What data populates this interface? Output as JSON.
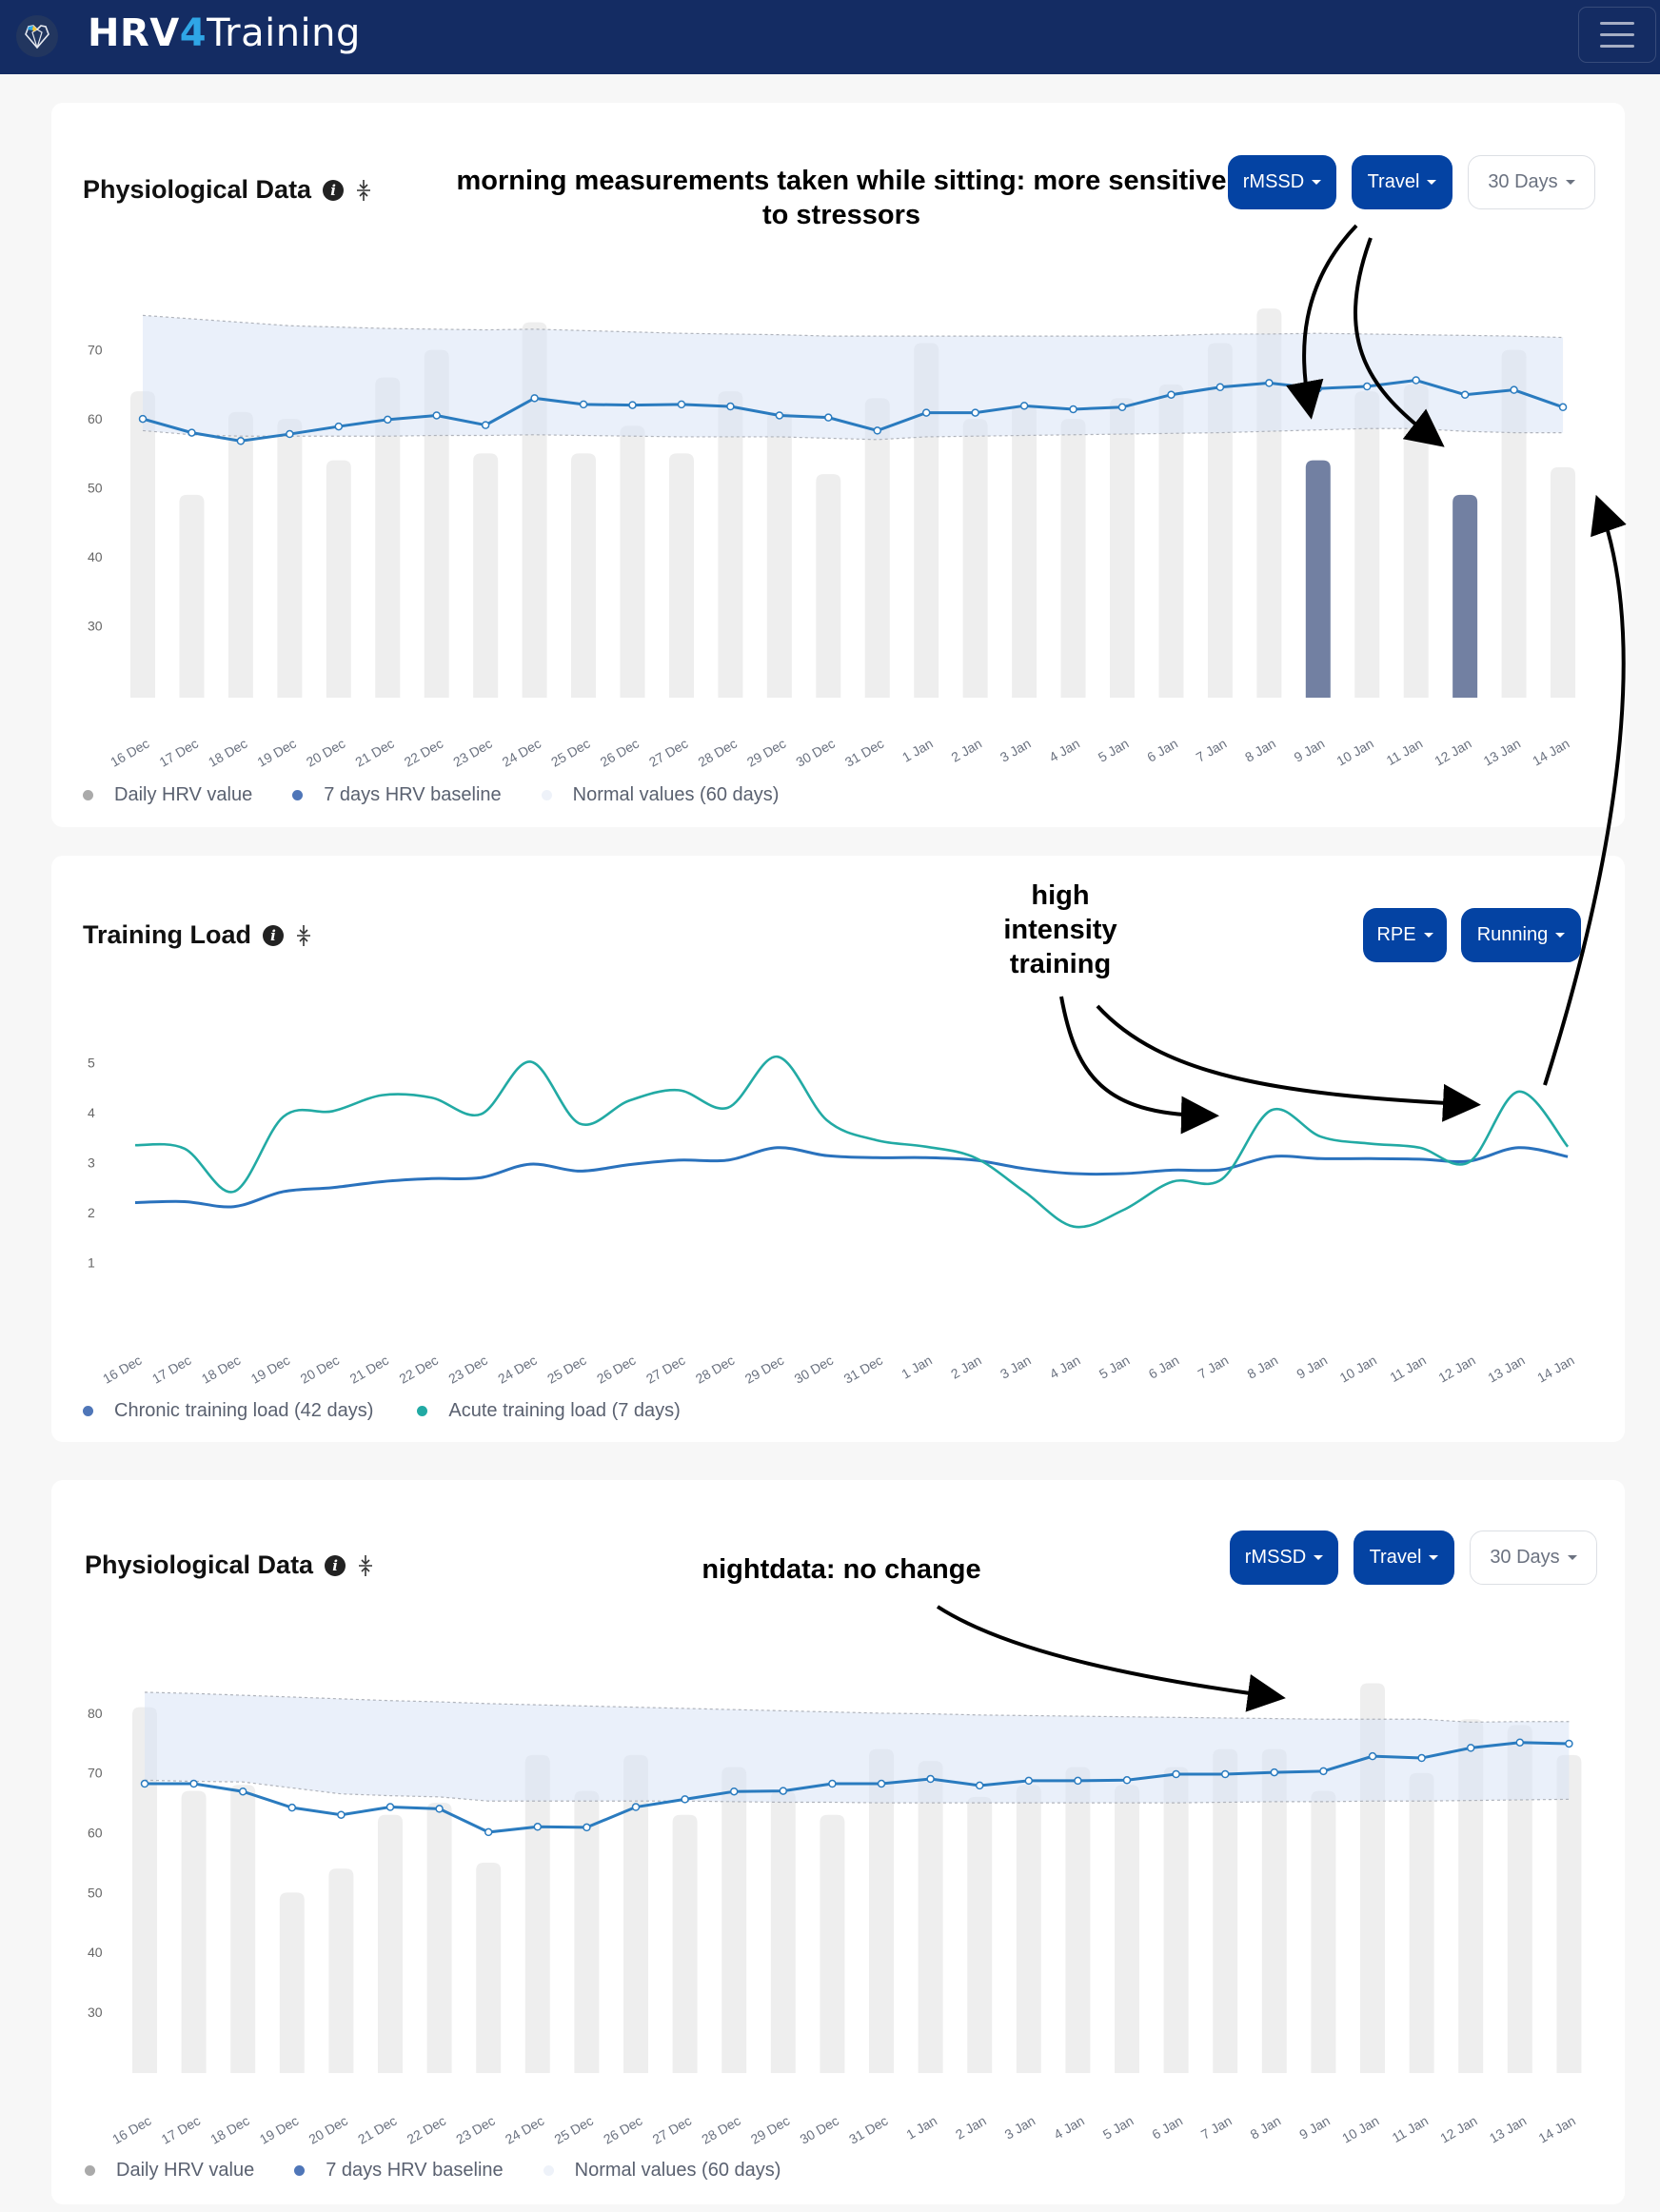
{
  "header": {
    "brand_part1": "HRV",
    "brand_part2": "4",
    "brand_part3": "Training",
    "logo_icon": "heart-logo-icon",
    "menu_icon": "hamburger-menu-icon"
  },
  "colors": {
    "header_bg": "#142c63",
    "primary_button": "#0443a3",
    "baseline_line": "#2a7bbf",
    "daily_bar": "#eeeeee",
    "highlight_bar": "#7280a2",
    "normal_band": "#e9eff9",
    "acute_line": "#22aaa4",
    "chronic_line": "#2a72bd"
  },
  "cards": [
    {
      "title": "Physiological Data",
      "annotation": "morning measurements taken while sitting: more sensitive to stressors",
      "buttons": {
        "metric": "rMSSD",
        "tag": "Travel",
        "range": "30 Days"
      },
      "legend": [
        "Daily HRV value",
        "7 days HRV baseline",
        "Normal values (60 days)"
      ]
    },
    {
      "title": "Training Load",
      "annotation": "high intensity training",
      "buttons": {
        "metric": "RPE",
        "sport": "Running"
      },
      "legend": [
        "Chronic training load (42 days)",
        "Acute training load (7 days)"
      ]
    },
    {
      "title": "Physiological Data",
      "annotation": "nightdata: no change",
      "buttons": {
        "metric": "rMSSD",
        "tag": "Travel",
        "range": "30 Days"
      },
      "legend": [
        "Daily HRV value",
        "7 days HRV baseline",
        "Normal values (60 days)"
      ]
    }
  ],
  "chart_data": [
    {
      "type": "bar",
      "title": "Physiological Data (morning, sitting)",
      "categories": [
        "16 Dec",
        "17 Dec",
        "18 Dec",
        "19 Dec",
        "20 Dec",
        "21 Dec",
        "22 Dec",
        "23 Dec",
        "24 Dec",
        "25 Dec",
        "26 Dec",
        "27 Dec",
        "28 Dec",
        "29 Dec",
        "30 Dec",
        "31 Dec",
        "1 Jan",
        "2 Jan",
        "3 Jan",
        "4 Jan",
        "5 Jan",
        "6 Jan",
        "7 Jan",
        "8 Jan",
        "9 Jan",
        "10 Jan",
        "11 Jan",
        "12 Jan",
        "13 Jan",
        "14 Jan"
      ],
      "yticks": [
        30,
        40,
        50,
        60,
        70
      ],
      "ylim": [
        19.6,
        76
      ],
      "series": [
        {
          "name": "Daily HRV value",
          "type": "bar",
          "values": [
            64,
            49,
            61,
            60,
            54,
            66,
            70,
            55,
            74,
            55,
            59,
            55,
            64,
            61,
            52,
            63,
            71,
            60,
            62,
            60,
            63,
            65,
            71,
            76,
            54,
            64,
            65,
            49,
            70,
            53
          ]
        },
        {
          "name": "7 days HRV baseline",
          "type": "line",
          "values": [
            60,
            58,
            56.8,
            57.8,
            58.9,
            59.9,
            60.5,
            59.1,
            63,
            62.1,
            62,
            62.1,
            61.8,
            60.5,
            60.2,
            58.3,
            60.9,
            60.9,
            61.9,
            61.4,
            61.7,
            63.5,
            64.6,
            65.2,
            64.4,
            64.7,
            65.6,
            63.5,
            64.2,
            61.7
          ]
        },
        {
          "name": "Normal values (60 days)",
          "type": "band",
          "upper": [
            75,
            74.5,
            74,
            73.5,
            73.3,
            73.1,
            73,
            72.9,
            73,
            72.8,
            72.6,
            72.4,
            72.3,
            72.2,
            72,
            72,
            72,
            72,
            72,
            72,
            72,
            72.1,
            72.3,
            72.3,
            72.4,
            72.3,
            72.2,
            72.1,
            72,
            71.8
          ],
          "lower": [
            58.3,
            57.7,
            57.5,
            57.5,
            57.5,
            57.5,
            57.6,
            57.6,
            57.7,
            57.6,
            57.5,
            57.4,
            57.4,
            57.4,
            57.2,
            57,
            57.4,
            57.5,
            57.6,
            57.7,
            57.8,
            57.9,
            58,
            58.2,
            58.4,
            58.6,
            58.6,
            58.2,
            58.0,
            58.0
          ]
        }
      ],
      "highlighted": [
        "9 Jan",
        "12 Jan"
      ],
      "legend_position": "bottom-left"
    },
    {
      "type": "line",
      "title": "Training Load",
      "categories": [
        "16 Dec",
        "17 Dec",
        "18 Dec",
        "19 Dec",
        "20 Dec",
        "21 Dec",
        "22 Dec",
        "23 Dec",
        "24 Dec",
        "25 Dec",
        "26 Dec",
        "27 Dec",
        "28 Dec",
        "29 Dec",
        "30 Dec",
        "31 Dec",
        "1 Jan",
        "2 Jan",
        "3 Jan",
        "4 Jan",
        "5 Jan",
        "6 Jan",
        "7 Jan",
        "8 Jan",
        "9 Jan",
        "10 Jan",
        "11 Jan",
        "12 Jan",
        "13 Jan",
        "14 Jan"
      ],
      "yticks": [
        1,
        2,
        3,
        4,
        5
      ],
      "ylim": [
        0,
        5.5
      ],
      "series": [
        {
          "name": "Chronic training load (42 days)",
          "values": [
            2.2,
            2.22,
            2.12,
            2.42,
            2.5,
            2.62,
            2.68,
            2.7,
            2.97,
            2.83,
            2.96,
            3.05,
            3.05,
            3.3,
            3.14,
            3.1,
            3.1,
            3.05,
            2.88,
            2.78,
            2.78,
            2.85,
            2.86,
            3.12,
            3.08,
            3.08,
            3.07,
            3.03,
            3.3,
            3.12
          ]
        },
        {
          "name": "Acute training load (7 days)",
          "values": [
            3.35,
            3.28,
            2.42,
            3.92,
            4.03,
            4.35,
            4.3,
            3.97,
            5.02,
            3.78,
            4.24,
            4.45,
            4.1,
            5.12,
            3.85,
            3.45,
            3.32,
            3.1,
            2.42,
            1.72,
            2.05,
            2.62,
            2.67,
            4.05,
            3.52,
            3.38,
            3.3,
            3.01,
            4.42,
            3.32
          ]
        }
      ],
      "legend_position": "bottom-left"
    },
    {
      "type": "bar",
      "title": "Physiological Data (night)",
      "categories": [
        "16 Dec",
        "17 Dec",
        "18 Dec",
        "19 Dec",
        "20 Dec",
        "21 Dec",
        "22 Dec",
        "23 Dec",
        "24 Dec",
        "25 Dec",
        "26 Dec",
        "27 Dec",
        "28 Dec",
        "29 Dec",
        "30 Dec",
        "31 Dec",
        "1 Jan",
        "2 Jan",
        "3 Jan",
        "4 Jan",
        "5 Jan",
        "6 Jan",
        "7 Jan",
        "8 Jan",
        "9 Jan",
        "10 Jan",
        "11 Jan",
        "12 Jan",
        "13 Jan",
        "14 Jan"
      ],
      "yticks": [
        30,
        40,
        50,
        60,
        70,
        80
      ],
      "ylim": [
        19.8,
        84
      ],
      "series": [
        {
          "name": "Daily HRV value",
          "type": "bar",
          "values": [
            81,
            67,
            68,
            50,
            54,
            63,
            65,
            55,
            73,
            67,
            73,
            63,
            71,
            67,
            63,
            74,
            72,
            66,
            68,
            71,
            68,
            71,
            74,
            74,
            67,
            85,
            70,
            79,
            78,
            73
          ]
        },
        {
          "name": "7 days HRV baseline",
          "type": "line",
          "values": [
            68.2,
            68.2,
            66.9,
            64.2,
            63.0,
            64.3,
            64.0,
            60.1,
            61,
            60.9,
            64.3,
            65.6,
            66.9,
            67,
            68.2,
            68.2,
            69,
            67.9,
            68.7,
            68.7,
            68.8,
            69.8,
            69.8,
            70.1,
            70.3,
            72.8,
            72.5,
            74.2,
            75.1,
            74.9
          ]
        },
        {
          "name": "Normal values (60 days)",
          "type": "band",
          "upper": [
            83.5,
            83.3,
            83,
            82.7,
            82.4,
            82.1,
            81.9,
            81.6,
            81.4,
            81.2,
            81,
            80.8,
            80.6,
            80.4,
            80.2,
            80,
            79.9,
            79.7,
            79.6,
            79.5,
            79.4,
            79.3,
            79.2,
            79.1,
            79,
            79,
            79,
            78.5,
            78.6,
            78.6
          ],
          "lower": [
            68.8,
            68.6,
            68.5,
            67.5,
            66.5,
            66.2,
            66,
            65.3,
            65.3,
            65.3,
            65.3,
            65.3,
            65.2,
            65.1,
            65.1,
            65,
            65,
            65,
            65,
            65,
            65,
            65,
            65.1,
            65.2,
            65.2,
            65.3,
            65.3,
            65.4,
            65.5,
            65.6
          ]
        }
      ],
      "legend_position": "bottom-left"
    }
  ]
}
